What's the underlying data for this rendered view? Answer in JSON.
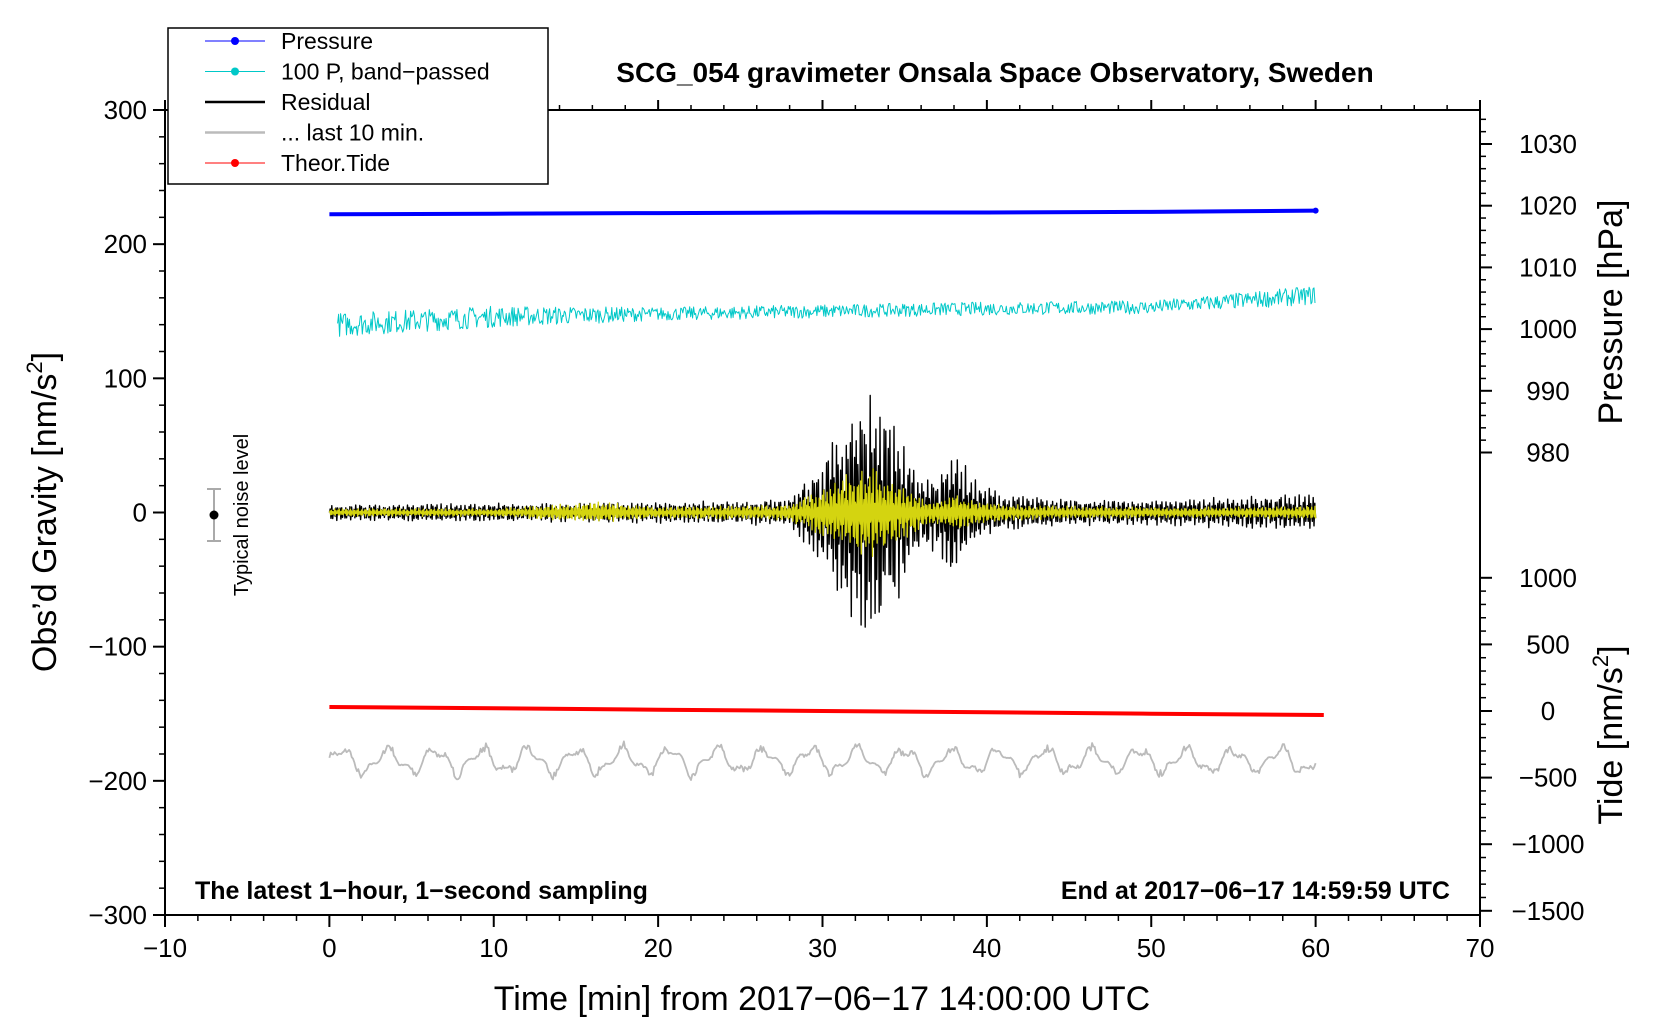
{
  "chart_data": {
    "type": "line",
    "title": "SCG_054 gravimeter Onsala Space Observatory, Sweden",
    "xlabel": "Time [min] from 2017−06−17 14:00:00 UTC",
    "ylabel_main": "Obs’d Gravity [nm/s",
    "ylabel_sup": "2",
    "ylabel_close": "]",
    "ylabel_pressure": "Pressure [hPa]",
    "ylabel_tide_main": "Tide [nm/s",
    "ylabel_tide_sup": "2",
    "ylabel_tide_close": "]",
    "xlim": [
      -10,
      70
    ],
    "ylim": [
      -300,
      300
    ],
    "x_ticks": [
      "−10",
      "0",
      "10",
      "20",
      "30",
      "40",
      "50",
      "60",
      "70"
    ],
    "y_ticks": [
      "300",
      "200",
      "100",
      "0",
      "−100",
      "−200",
      "−300"
    ],
    "pressure_ticks": [
      "1030",
      "1020",
      "1010",
      "1000",
      "990",
      "980"
    ],
    "tide_ticks": [
      "1000",
      "500",
      "0",
      "−500",
      "−1000",
      "−1500"
    ],
    "annotation_left": "The latest 1−hour, 1−second sampling",
    "annotation_right": "End at 2017−06−17 14:59:59 UTC",
    "noise_label": "Typical noise level",
    "noise_level": {
      "x": -7,
      "center": 0,
      "half_range": 20
    },
    "legend": {
      "placement": "top-left",
      "entries": [
        {
          "label": "Pressure",
          "color": "#0000ff",
          "marker": true
        },
        {
          "label": "100 P, band−passed",
          "color": "#00c8c8",
          "marker": true
        },
        {
          "label": "Residual",
          "color": "#000000",
          "marker": false
        },
        {
          "label": "... last 10 min.",
          "color": "#bbbbbb",
          "marker": false
        },
        {
          "label": "Theor.Tide",
          "color": "#ff0000",
          "marker": true
        }
      ]
    },
    "series": [
      {
        "name": "Pressure",
        "axis": "pressure",
        "color": "#0000ff",
        "x": [
          0,
          10,
          20,
          30,
          40,
          50,
          55,
          60
        ],
        "values": [
          1018.6,
          1018.7,
          1018.8,
          1018.9,
          1018.9,
          1019.0,
          1019.1,
          1019.2
        ]
      },
      {
        "name": "100 P, band−passed",
        "axis": "gravity",
        "color": "#00c8c8",
        "x": [
          0.5,
          10,
          20,
          30,
          40,
          50,
          60
        ],
        "center": [
          140,
          146,
          148,
          150,
          152,
          153,
          162
        ],
        "envelope": [
          9,
          8,
          5,
          5,
          5,
          5,
          7
        ]
      },
      {
        "name": "Residual",
        "axis": "gravity",
        "color": "#000000",
        "x": [
          0,
          10,
          20,
          28,
          30,
          31.5,
          33,
          34.5,
          36,
          37,
          38,
          39,
          41,
          45,
          50,
          55,
          60
        ],
        "center": [
          0,
          0,
          0,
          0,
          0,
          0,
          0,
          0,
          0,
          0,
          0,
          0,
          0,
          0,
          0,
          0,
          0
        ],
        "envelope": [
          6,
          7,
          8,
          10,
          40,
          80,
          98,
          70,
          30,
          30,
          55,
          28,
          15,
          10,
          10,
          12,
          14
        ]
      },
      {
        "name": "... last 10 min.",
        "axis": "gravity",
        "color": "#bbbbbb",
        "x": [
          0,
          10,
          20,
          30,
          40,
          50,
          60
        ],
        "center": [
          -185,
          -185,
          -185,
          -185,
          -185,
          -185,
          -185
        ],
        "envelope": [
          15,
          15,
          15,
          15,
          15,
          15,
          15
        ]
      },
      {
        "name": "Theor.Tide",
        "axis": "tide",
        "color": "#ff0000",
        "x": [
          0,
          10,
          20,
          30,
          40,
          50,
          60.5
        ],
        "values": [
          30,
          20,
          10,
          0,
          -10,
          -20,
          -30
        ]
      },
      {
        "name": "",
        "axis": "gravity",
        "color": "#d4d410",
        "x": [
          0,
          10,
          16.5,
          20,
          28,
          30,
          32,
          33,
          34,
          36,
          37,
          38,
          39,
          41,
          45,
          50,
          55,
          60
        ],
        "center": [
          0,
          0,
          0,
          0,
          0,
          0,
          0,
          0,
          0,
          0,
          0,
          0,
          0,
          0,
          0,
          0,
          0,
          0
        ],
        "envelope": [
          3,
          3,
          8,
          4,
          6,
          20,
          33,
          35,
          28,
          12,
          10,
          15,
          10,
          6,
          5,
          4,
          4,
          5
        ]
      }
    ]
  }
}
